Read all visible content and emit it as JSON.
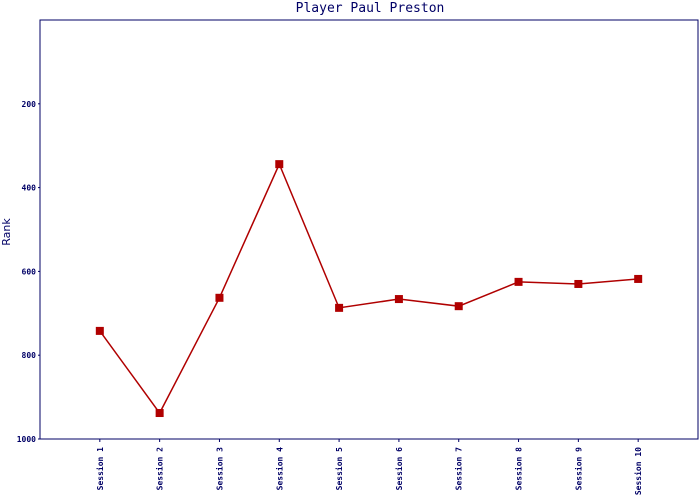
{
  "chart_data": {
    "type": "line",
    "title": "Player Paul Preston",
    "y_label": "Rank",
    "categories": [
      "Session 1",
      "Session 2",
      "Session 3",
      "Session 4",
      "Session 5",
      "Session 6",
      "Session 7",
      "Session 8",
      "Session 9",
      "Session 10"
    ],
    "series": [
      {
        "name": "Rank",
        "color": "#b00000",
        "values": [
          742,
          938,
          663,
          344,
          687,
          666,
          683,
          625,
          630,
          618
        ]
      }
    ],
    "ylim": [
      1000,
      0
    ],
    "yticks": [
      200,
      400,
      600,
      800,
      1000
    ],
    "inverted_y": true
  }
}
